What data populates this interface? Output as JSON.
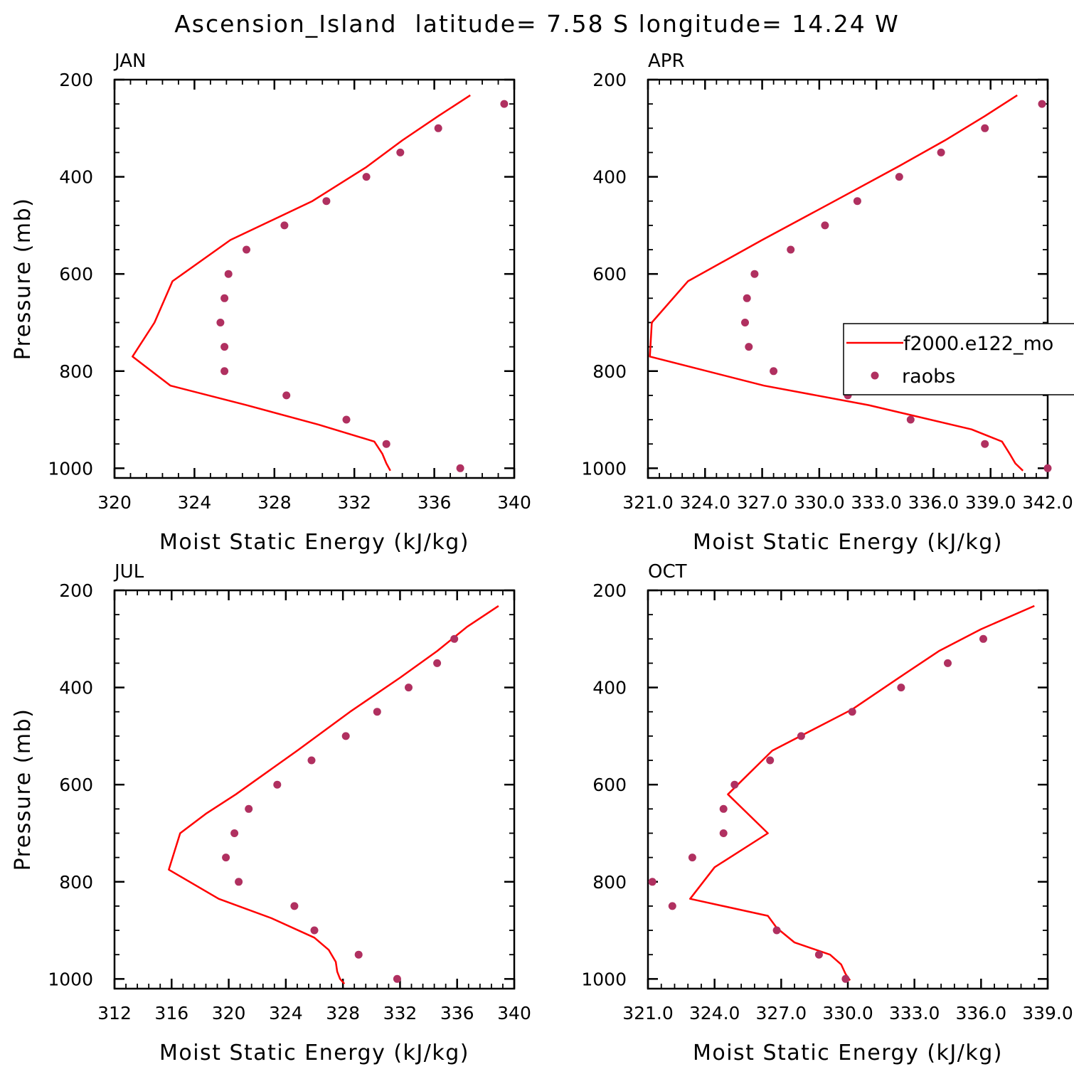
{
  "title": "Ascension_Island  latitude= 7.58 S longitude= 14.24 W",
  "colors": {
    "model_line": "#ff0000",
    "raobs_dot": "#b03060",
    "axis": "#000000"
  },
  "legend": {
    "model_label": "f2000.e122_mo",
    "obs_label": "raobs",
    "panel": "APR"
  },
  "chart_data": [
    {
      "type": "line",
      "label": "JAN",
      "xlabel": "Moist Static Energy (kJ/kg)",
      "ylabel": "Pressure (mb)",
      "xlim": [
        320,
        340
      ],
      "ylim": [
        1020,
        200
      ],
      "xticks": [
        "320",
        "324",
        "328",
        "332",
        "336",
        "340"
      ],
      "xtick_values": [
        320,
        324,
        328,
        332,
        336,
        340
      ],
      "yticks": [
        "200",
        "400",
        "600",
        "800",
        "1000"
      ],
      "ytick_values": [
        200,
        400,
        600,
        800,
        1000
      ],
      "series": [
        {
          "name": "f2000.e122_mo",
          "kind": "line",
          "x": [
            337.8,
            336.2,
            334.4,
            332.6,
            329.9,
            325.8,
            322.9,
            322.0,
            320.9,
            322.8,
            326.6,
            330.2,
            333.0,
            333.4,
            333.6,
            333.8
          ],
          "y": [
            232,
            275,
            325,
            380,
            450,
            530,
            615,
            700,
            770,
            830,
            870,
            910,
            945,
            970,
            990,
            1005
          ]
        },
        {
          "name": "raobs",
          "kind": "scatter",
          "x": [
            339.5,
            336.2,
            334.3,
            332.6,
            330.6,
            328.5,
            326.6,
            325.7,
            325.5,
            325.3,
            325.5,
            325.5,
            328.6,
            331.6,
            333.6,
            337.3
          ],
          "y": [
            250,
            300,
            350,
            400,
            450,
            500,
            550,
            600,
            650,
            700,
            750,
            800,
            850,
            900,
            950,
            1000
          ]
        }
      ]
    },
    {
      "type": "line",
      "label": "APR",
      "xlabel": "Moist Static Energy (kJ/kg)",
      "ylabel": "",
      "xlim": [
        321.0,
        342.0
      ],
      "ylim": [
        1020,
        200
      ],
      "xticks": [
        "321.0",
        "324.0",
        "327.0",
        "330.0",
        "333.0",
        "336.0",
        "339.0",
        "342.0"
      ],
      "xtick_values": [
        321,
        324,
        327,
        330,
        333,
        336,
        339,
        342
      ],
      "yticks": [
        "200",
        "400",
        "600",
        "800",
        "1000"
      ],
      "ytick_values": [
        200,
        400,
        600,
        800,
        1000
      ],
      "series": [
        {
          "name": "f2000.e122_mo",
          "kind": "line",
          "x": [
            340.4,
            338.7,
            336.6,
            334.1,
            330.8,
            327.0,
            323.1,
            321.2,
            321.1,
            327.1,
            332.6,
            338.0,
            339.6,
            340.0,
            340.3,
            340.7
          ],
          "y": [
            232,
            275,
            325,
            380,
            450,
            530,
            615,
            700,
            770,
            830,
            870,
            920,
            945,
            970,
            990,
            1005
          ]
        },
        {
          "name": "raobs",
          "kind": "scatter",
          "x": [
            341.7,
            338.7,
            336.4,
            334.2,
            332.0,
            330.3,
            328.5,
            326.6,
            326.2,
            326.1,
            326.3,
            327.6,
            331.5,
            334.8,
            338.7,
            342.0
          ],
          "y": [
            250,
            300,
            350,
            400,
            450,
            500,
            550,
            600,
            650,
            700,
            750,
            800,
            850,
            900,
            950,
            1000
          ]
        }
      ]
    },
    {
      "type": "line",
      "label": "JUL",
      "xlabel": "Moist Static Energy (kJ/kg)",
      "ylabel": "Pressure (mb)",
      "xlim": [
        312,
        340
      ],
      "ylim": [
        1020,
        200
      ],
      "xticks": [
        "312",
        "316",
        "320",
        "324",
        "328",
        "332",
        "336",
        "340"
      ],
      "xtick_values": [
        312,
        316,
        320,
        324,
        328,
        332,
        336,
        340
      ],
      "yticks": [
        "200",
        "400",
        "600",
        "800",
        "1000"
      ],
      "ytick_values": [
        200,
        400,
        600,
        800,
        1000
      ],
      "series": [
        {
          "name": "f2000.e122_mo",
          "kind": "line",
          "x": [
            338.9,
            336.7,
            334.6,
            332.0,
            328.5,
            324.8,
            320.5,
            318.4,
            316.6,
            315.8,
            319.3,
            323.0,
            326.0,
            327.0,
            327.5,
            327.6,
            327.8,
            328.1
          ],
          "y": [
            232,
            275,
            325,
            380,
            450,
            530,
            620,
            660,
            700,
            775,
            835,
            875,
            915,
            940,
            965,
            985,
            1000,
            1010
          ]
        },
        {
          "name": "raobs",
          "kind": "scatter",
          "x": [
            335.8,
            334.6,
            332.6,
            330.4,
            328.2,
            325.8,
            323.4,
            321.4,
            320.4,
            319.8,
            320.7,
            324.6,
            326.0,
            329.1,
            331.8
          ],
          "y": [
            300,
            350,
            400,
            450,
            500,
            550,
            600,
            650,
            700,
            750,
            800,
            850,
            900,
            950,
            1000
          ]
        }
      ]
    },
    {
      "type": "line",
      "label": "OCT",
      "xlabel": "Moist Static Energy (kJ/kg)",
      "ylabel": "",
      "xlim": [
        321.0,
        339.0
      ],
      "ylim": [
        1020,
        200
      ],
      "xticks": [
        "321.0",
        "324.0",
        "327.0",
        "330.0",
        "333.0",
        "336.0",
        "339.0"
      ],
      "xtick_values": [
        321,
        324,
        327,
        330,
        333,
        336,
        339
      ],
      "yticks": [
        "200",
        "400",
        "600",
        "800",
        "1000"
      ],
      "ytick_values": [
        200,
        400,
        600,
        800,
        1000
      ],
      "series": [
        {
          "name": "f2000.e122_mo",
          "kind": "line",
          "x": [
            338.4,
            336.0,
            334.1,
            332.3,
            330.2,
            326.6,
            324.6,
            326.4,
            324.0,
            322.9,
            326.4,
            326.8,
            327.6,
            329.2,
            329.7,
            329.9,
            330.1
          ],
          "y": [
            232,
            280,
            325,
            380,
            445,
            530,
            620,
            700,
            770,
            835,
            870,
            895,
            925,
            950,
            970,
            990,
            1003
          ]
        },
        {
          "name": "raobs",
          "kind": "scatter",
          "x": [
            336.1,
            334.5,
            332.4,
            330.2,
            327.9,
            326.5,
            324.9,
            324.4,
            324.4,
            323.0,
            321.2,
            322.1,
            326.8,
            328.7,
            329.9
          ],
          "y": [
            300,
            350,
            400,
            450,
            500,
            550,
            600,
            650,
            700,
            750,
            800,
            850,
            900,
            950,
            1000
          ]
        }
      ]
    }
  ]
}
